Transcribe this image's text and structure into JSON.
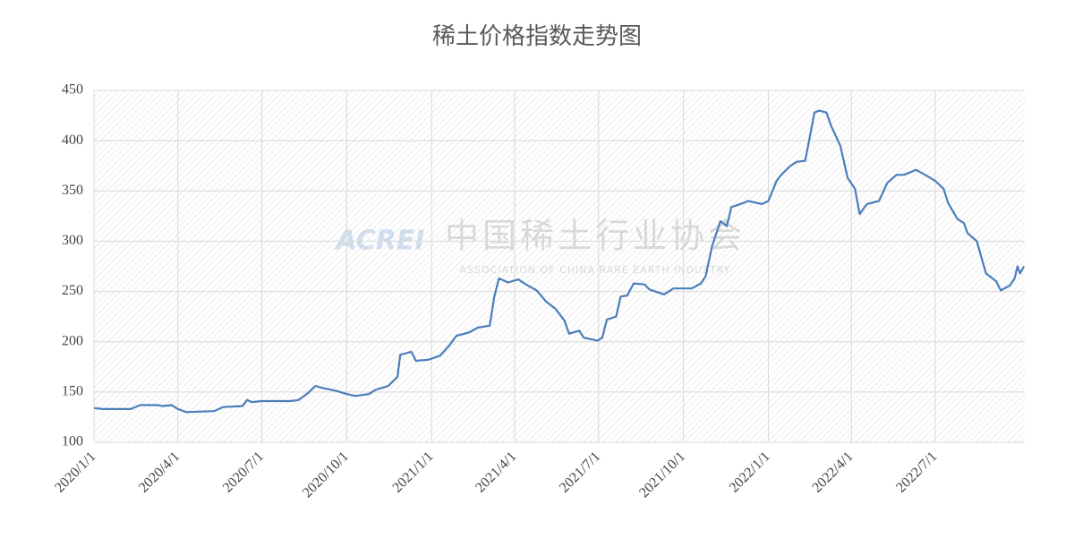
{
  "chart_data": {
    "type": "line",
    "title": "稀土价格指数走势图",
    "watermark": {
      "logo": "ACREI",
      "name": "中国稀土行业协会",
      "english": "ASSOCIATION OF CHINA RARE EARTH INDUSTRY"
    },
    "x": [
      "2020/1/1",
      "2020/1/10",
      "2020/2/10",
      "2020/2/20",
      "2020/3/10",
      "2020/3/15",
      "2020/3/25",
      "2020/4/1",
      "2020/4/10",
      "2020/5/10",
      "2020/5/20",
      "2020/6/10",
      "2020/6/15",
      "2020/6/20",
      "2020/7/1",
      "2020/8/1",
      "2020/8/10",
      "2020/8/20",
      "2020/8/28",
      "2020/9/5",
      "2020/9/20",
      "2020/10/1",
      "2020/10/10",
      "2020/10/25",
      "2020/11/1",
      "2020/11/15",
      "2020/11/25",
      "2020/11/28",
      "2020/12/10",
      "2020/12/15",
      "2020/12/28",
      "2021/1/10",
      "2021/1/20",
      "2021/1/28",
      "2021/2/10",
      "2021/2/20",
      "2021/3/5",
      "2021/3/10",
      "2021/3/15",
      "2021/3/25",
      "2021/4/5",
      "2021/4/15",
      "2021/4/25",
      "2021/5/5",
      "2021/5/15",
      "2021/5/25",
      "2021/5/30",
      "2021/6/10",
      "2021/6/15",
      "2021/6/30",
      "2021/7/5",
      "2021/7/10",
      "2021/7/20",
      "2021/7/25",
      "2021/8/1",
      "2021/8/8",
      "2021/8/20",
      "2021/8/25",
      "2021/9/10",
      "2021/9/20",
      "2021/10/10",
      "2021/10/20",
      "2021/10/25",
      "2021/11/1",
      "2021/11/10",
      "2021/11/17",
      "2021/11/22",
      "2021/12/5",
      "2021/12/10",
      "2021/12/25",
      "2022/1/1",
      "2022/1/10",
      "2022/1/15",
      "2022/1/25",
      "2022/2/1",
      "2022/2/10",
      "2022/2/20",
      "2022/2/25",
      "2022/3/5",
      "2022/3/10",
      "2022/3/20",
      "2022/3/28",
      "2022/4/5",
      "2022/4/10",
      "2022/4/18",
      "2022/5/1",
      "2022/5/10",
      "2022/5/20",
      "2022/5/28",
      "2022/6/5",
      "2022/6/10",
      "2022/6/20",
      "2022/7/1",
      "2022/7/10",
      "2022/7/15",
      "2022/7/25",
      "2022/8/1",
      "2022/8/5",
      "2022/8/15",
      "2022/8/25",
      "2022/9/5",
      "2022/9/10",
      "2022/9/20",
      "2022/9/25",
      "2022/9/28",
      "2022/10/1",
      "2022/10/5"
    ],
    "series": [
      {
        "name": "稀土价格指数",
        "color": "#4a7ebb",
        "values": [
          134,
          133,
          133,
          137,
          137,
          136,
          137,
          133,
          130,
          131,
          135,
          136,
          142,
          140,
          141,
          141,
          142,
          149,
          156,
          154,
          151,
          148,
          146,
          148,
          152,
          156,
          165,
          187,
          190,
          181,
          182,
          186,
          196,
          206,
          209,
          214,
          216,
          245,
          263,
          259,
          262,
          256,
          251,
          240,
          233,
          221,
          208,
          211,
          204,
          201,
          204,
          222,
          225,
          245,
          246,
          258,
          257,
          252,
          247,
          253,
          253,
          258,
          265,
          295,
          320,
          315,
          334,
          338,
          340,
          337,
          340,
          360,
          366,
          375,
          379,
          380,
          428,
          430,
          428,
          415,
          395,
          363,
          352,
          327,
          337,
          340,
          358,
          366,
          366,
          369,
          371,
          366,
          360,
          352,
          338,
          322,
          318,
          308,
          300,
          268,
          260,
          251,
          256,
          263,
          275,
          268,
          275
        ]
      }
    ],
    "xlim": [
      "2020/1/1",
      "2022/10/6"
    ],
    "xticks": [
      "2020/1/1",
      "2020/4/1",
      "2020/7/1",
      "2020/10/1",
      "2021/1/1",
      "2021/4/1",
      "2021/7/1",
      "2021/10/1",
      "2022/1/1",
      "2022/4/1",
      "2022/7/1"
    ],
    "ylim": [
      100,
      450
    ],
    "yticks": [
      100,
      150,
      200,
      250,
      300,
      350,
      400,
      450
    ],
    "grid": true
  }
}
